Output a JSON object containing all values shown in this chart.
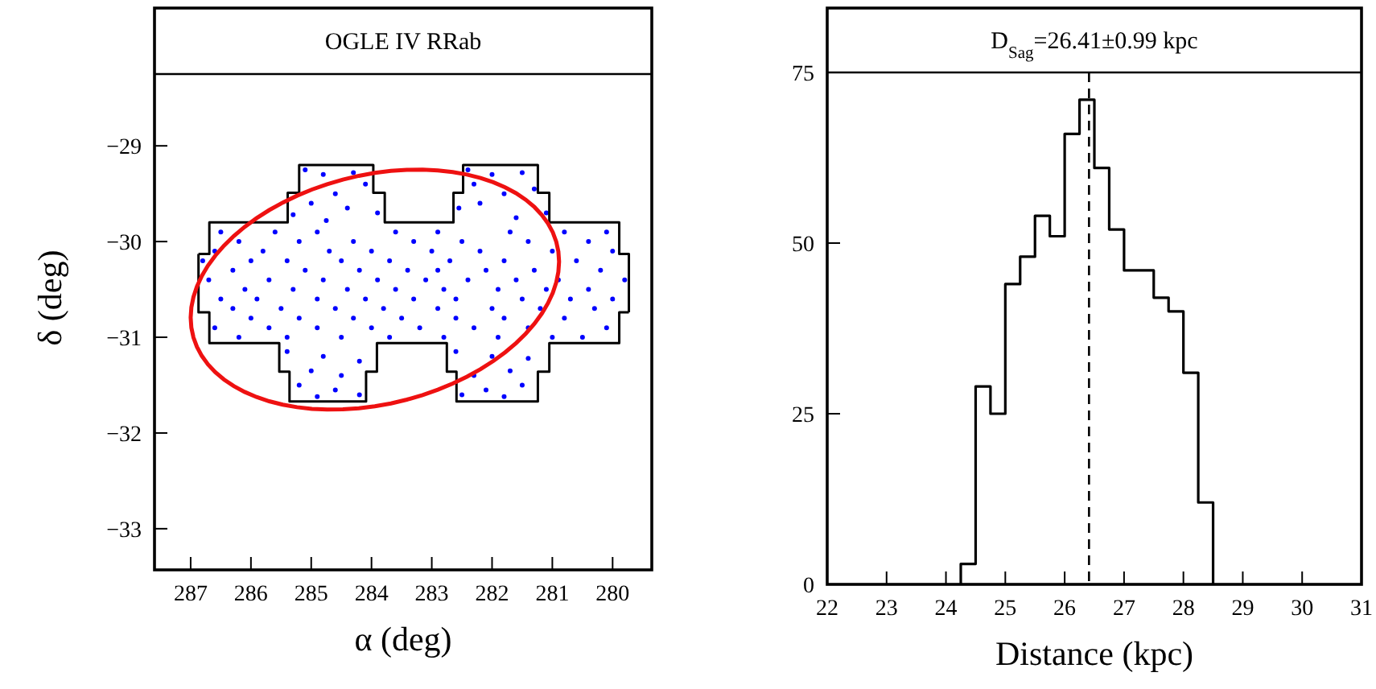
{
  "chart_data": [
    {
      "type": "scatter",
      "title": "OGLE IV RRab",
      "xlabel": "α (deg)",
      "ylabel": "δ (deg)",
      "xlim": [
        287.6,
        279.35
      ],
      "ylim": [
        -33.43,
        -28.25
      ],
      "xticks": [
        287,
        286,
        285,
        284,
        283,
        282,
        281,
        280
      ],
      "yticks": [
        {
          "value": -29,
          "label": "−29"
        },
        {
          "value": -30,
          "label": "−30"
        },
        {
          "value": -31,
          "label": "−31"
        },
        {
          "value": -32,
          "label": "−32"
        },
        {
          "value": -33,
          "label": "−33"
        }
      ],
      "series": [
        {
          "type": "scatter",
          "color": "#0000ff",
          "marker": "circle",
          "x": [
            285.1,
            284.8,
            284.3,
            284.1,
            284.6,
            285.0,
            284.4,
            283.9,
            285.3,
            284.75,
            282.4,
            282.0,
            281.5,
            281.3,
            281.8,
            282.2,
            282.55,
            281.1,
            281.6,
            282.3,
            286.5,
            285.6,
            284.9,
            283.6,
            282.9,
            281.7,
            280.8,
            280.1,
            286.2,
            285.2,
            284.3,
            283.3,
            282.5,
            281.4,
            280.4,
            286.6,
            285.8,
            284.7,
            284.0,
            283.0,
            282.2,
            281.0,
            280.0,
            286.8,
            286.0,
            285.4,
            284.5,
            283.7,
            282.7,
            281.8,
            280.6,
            286.3,
            285.1,
            284.2,
            283.4,
            282.9,
            282.1,
            281.3,
            280.2,
            286.7,
            285.7,
            284.8,
            283.9,
            283.1,
            282.4,
            281.6,
            280.9,
            279.8,
            286.1,
            285.3,
            284.4,
            283.6,
            282.8,
            281.9,
            281.1,
            280.4,
            286.5,
            285.9,
            284.9,
            284.1,
            283.3,
            282.6,
            281.5,
            280.7,
            280.0,
            286.3,
            285.5,
            284.6,
            283.8,
            282.9,
            282.0,
            281.2,
            280.3,
            286.0,
            285.2,
            284.3,
            283.5,
            282.6,
            281.8,
            280.8,
            286.6,
            285.7,
            284.9,
            284.0,
            283.2,
            282.3,
            281.4,
            280.1,
            286.2,
            285.4,
            284.5,
            283.7,
            282.8,
            281.9,
            281.0,
            280.5,
            285.4,
            284.8,
            284.2,
            285.0,
            284.5,
            285.2,
            284.6,
            284.2,
            284.9,
            282.6,
            282.0,
            281.4,
            281.7,
            282.3,
            281.5,
            282.1,
            281.8,
            282.5
          ],
          "values": [
            -29.25,
            -29.3,
            -29.28,
            -29.4,
            -29.5,
            -29.6,
            -29.65,
            -29.7,
            -29.72,
            -29.78,
            -29.25,
            -29.3,
            -29.28,
            -29.45,
            -29.5,
            -29.6,
            -29.65,
            -29.7,
            -29.75,
            -29.4,
            -29.9,
            -29.9,
            -29.9,
            -29.9,
            -29.9,
            -29.9,
            -29.9,
            -29.9,
            -30.0,
            -30.0,
            -30.0,
            -30.0,
            -30.0,
            -30.0,
            -30.0,
            -30.1,
            -30.1,
            -30.1,
            -30.1,
            -30.1,
            -30.1,
            -30.1,
            -30.1,
            -30.2,
            -30.2,
            -30.2,
            -30.2,
            -30.2,
            -30.2,
            -30.2,
            -30.2,
            -30.3,
            -30.3,
            -30.3,
            -30.3,
            -30.3,
            -30.3,
            -30.3,
            -30.3,
            -30.4,
            -30.4,
            -30.4,
            -30.4,
            -30.4,
            -30.4,
            -30.4,
            -30.4,
            -30.4,
            -30.5,
            -30.5,
            -30.5,
            -30.5,
            -30.5,
            -30.5,
            -30.5,
            -30.5,
            -30.6,
            -30.6,
            -30.6,
            -30.6,
            -30.6,
            -30.6,
            -30.6,
            -30.6,
            -30.6,
            -30.7,
            -30.7,
            -30.7,
            -30.7,
            -30.7,
            -30.7,
            -30.7,
            -30.7,
            -30.8,
            -30.8,
            -30.8,
            -30.8,
            -30.8,
            -30.8,
            -30.8,
            -30.9,
            -30.9,
            -30.9,
            -30.9,
            -30.9,
            -30.9,
            -30.9,
            -30.9,
            -31.0,
            -31.0,
            -31.0,
            -31.0,
            -31.0,
            -31.0,
            -31.0,
            -31.0,
            -31.15,
            -31.2,
            -31.25,
            -31.35,
            -31.4,
            -31.5,
            -31.55,
            -31.6,
            -31.62,
            -31.15,
            -31.2,
            -31.22,
            -31.35,
            -31.4,
            -31.5,
            -31.55,
            -31.62,
            -31.6
          ]
        },
        {
          "type": "line",
          "color": "#000000",
          "x": [
            286.87,
            286.69,
            286.69,
            285.39,
            285.39,
            285.2,
            285.2,
            283.97,
            283.97,
            283.78,
            283.78,
            282.64,
            282.64,
            282.48,
            282.48,
            281.24,
            281.24,
            281.05,
            281.05,
            279.89,
            279.89,
            279.73,
            279.73
          ],
          "values": [
            -30.13,
            -30.13,
            -29.8,
            -29.8,
            -29.49,
            -29.49,
            -29.2,
            -29.2,
            -29.49,
            -29.49,
            -29.8,
            -29.8,
            -29.49,
            -29.49,
            -29.2,
            -29.2,
            -29.49,
            -29.49,
            -29.8,
            -29.8,
            -30.13,
            -30.13,
            -30.74
          ]
        },
        {
          "type": "line",
          "color": "#000000",
          "x": [
            286.87,
            286.87,
            286.69,
            286.69,
            285.53,
            285.53,
            285.36,
            285.36,
            284.09,
            284.09,
            283.91,
            283.91,
            282.75,
            282.75,
            282.59,
            282.59,
            281.24,
            281.24,
            281.05,
            281.05,
            279.89,
            279.89,
            279.73
          ],
          "values": [
            -30.13,
            -30.74,
            -30.74,
            -31.06,
            -31.06,
            -31.36,
            -31.36,
            -31.67,
            -31.67,
            -31.36,
            -31.36,
            -31.06,
            -31.06,
            -31.36,
            -31.36,
            -31.67,
            -31.67,
            -31.36,
            -31.36,
            -31.06,
            -31.06,
            -30.74,
            -30.74
          ]
        }
      ]
    },
    {
      "type": "histogram",
      "title": "D$_{Sag}$=26.41±0.99 kpc",
      "xlabel": "Distance (kpc)",
      "color": "#000000",
      "xlim": [
        22,
        31
      ],
      "ylim": [
        0,
        75
      ],
      "xticks": [
        22,
        23,
        24,
        25,
        26,
        27,
        28,
        29,
        30,
        31
      ],
      "yticks": [
        0,
        25,
        50,
        75
      ],
      "bins": [
        24.25,
        24.5,
        24.75,
        25,
        25.25,
        25.5,
        25.75,
        26,
        26.25,
        26.5,
        26.75,
        27,
        27.25,
        27.5,
        27.75,
        28,
        28.25,
        28.5
      ],
      "values": [
        3,
        29,
        25,
        44,
        48,
        54,
        51,
        66,
        71,
        61,
        52,
        46,
        46,
        42,
        40,
        31,
        12
      ],
      "ref_lines": [
        {
          "axis": "x",
          "value": 26.41,
          "color": "#000000",
          "line_style": "dashed"
        }
      ]
    }
  ]
}
